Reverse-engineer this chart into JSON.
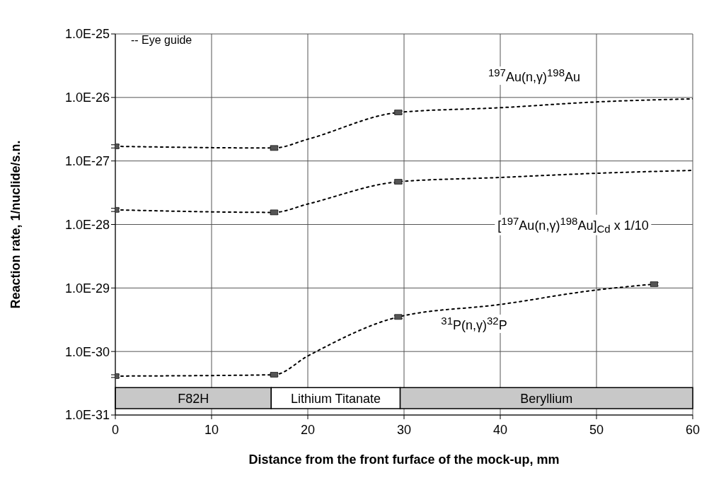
{
  "chart_data": {
    "type": "scatter",
    "xlabel": "Distance from the front furface of the mock-up, mm",
    "ylabel": "Reaction rate, 1/nuclide/s.n.",
    "log": "y",
    "grid": true,
    "marker": "square",
    "xlim": [
      0,
      60
    ],
    "xticks": [
      0,
      10,
      20,
      30,
      40,
      50,
      60
    ],
    "ylim": [
      1e-31,
      1e-25
    ],
    "yticks": [
      {
        "value": 1e-31,
        "label": "1.0E-31"
      },
      {
        "value": 1e-30,
        "label": "1.0E-30"
      },
      {
        "value": 1e-29,
        "label": "1.0E-29"
      },
      {
        "value": 1e-28,
        "label": "1.0E-28"
      },
      {
        "value": 1e-27,
        "label": "1.0E-27"
      },
      {
        "value": 1e-26,
        "label": "1.0E-26"
      },
      {
        "value": 1e-25,
        "label": "1.0E-25"
      }
    ],
    "annotations": [
      "-- Eye guide"
    ],
    "bands": [
      {
        "axis": "x",
        "from": 0,
        "to": 16.2,
        "label": "F82H",
        "color": "#c8c8c8"
      },
      {
        "axis": "x",
        "from": 16.2,
        "to": 29.6,
        "label": "Lithium Titanate",
        "color": "#ffffff"
      },
      {
        "axis": "x",
        "from": 29.6,
        "to": 60,
        "label": "Beryllium",
        "color": "#c8c8c8"
      }
    ],
    "series": [
      {
        "type": "line",
        "name": "$^{197}$Au(n,γ)$^{198}$Au",
        "line_style": "dotted",
        "marker": "none",
        "color": "#000000",
        "x": [
          0,
          16.5,
          20,
          29.4,
          40,
          50,
          60
        ],
        "values": [
          1.7e-27,
          1.6e-27,
          2.2e-27,
          5.8e-27,
          6.9e-27,
          8.5e-27,
          9.5e-27
        ]
      },
      {
        "color": "#555555",
        "x": [
          0,
          16.5,
          29.4
        ],
        "values": [
          1.7e-27,
          1.6e-27,
          5.8e-27
        ],
        "errors": [
          1e-28,
          1e-28,
          3e-28
        ]
      },
      {
        "type": "line",
        "name": "[$^{197}$Au(n,γ)$^{198}$Au]$_{Cd}$ x 1/10",
        "line_style": "dotted",
        "marker": "none",
        "color": "#000000",
        "x": [
          0,
          16.5,
          20,
          29.4,
          40,
          50,
          60
        ],
        "values": [
          1.7e-28,
          1.55e-28,
          2.1e-28,
          4.7e-28,
          5.5e-28,
          6.4e-28,
          7.1e-28
        ]
      },
      {
        "color": "#555555",
        "x": [
          0,
          16.5,
          29.4
        ],
        "values": [
          1.7e-28,
          1.55e-28,
          4.7e-28
        ],
        "errors": [
          1e-29,
          1e-29,
          3e-29
        ]
      },
      {
        "type": "line",
        "name": "$^{31}$P(n,γ)$^{32}$P",
        "line_style": "dotted",
        "marker": "none",
        "color": "#000000",
        "x": [
          0,
          16.5,
          20,
          29.4,
          40,
          50,
          56
        ],
        "values": [
          4.1e-31,
          4.3e-31,
          8.5e-31,
          3.5e-30,
          5.5e-30,
          9.3e-30,
          1.15e-29
        ]
      },
      {
        "color": "#555555",
        "x": [
          0,
          16.5,
          29.4,
          56
        ],
        "values": [
          4.1e-31,
          4.3e-31,
          3.5e-30,
          1.15e-29
        ],
        "errors": [
          2e-32,
          2e-32,
          2e-31,
          7e-31
        ]
      }
    ]
  }
}
